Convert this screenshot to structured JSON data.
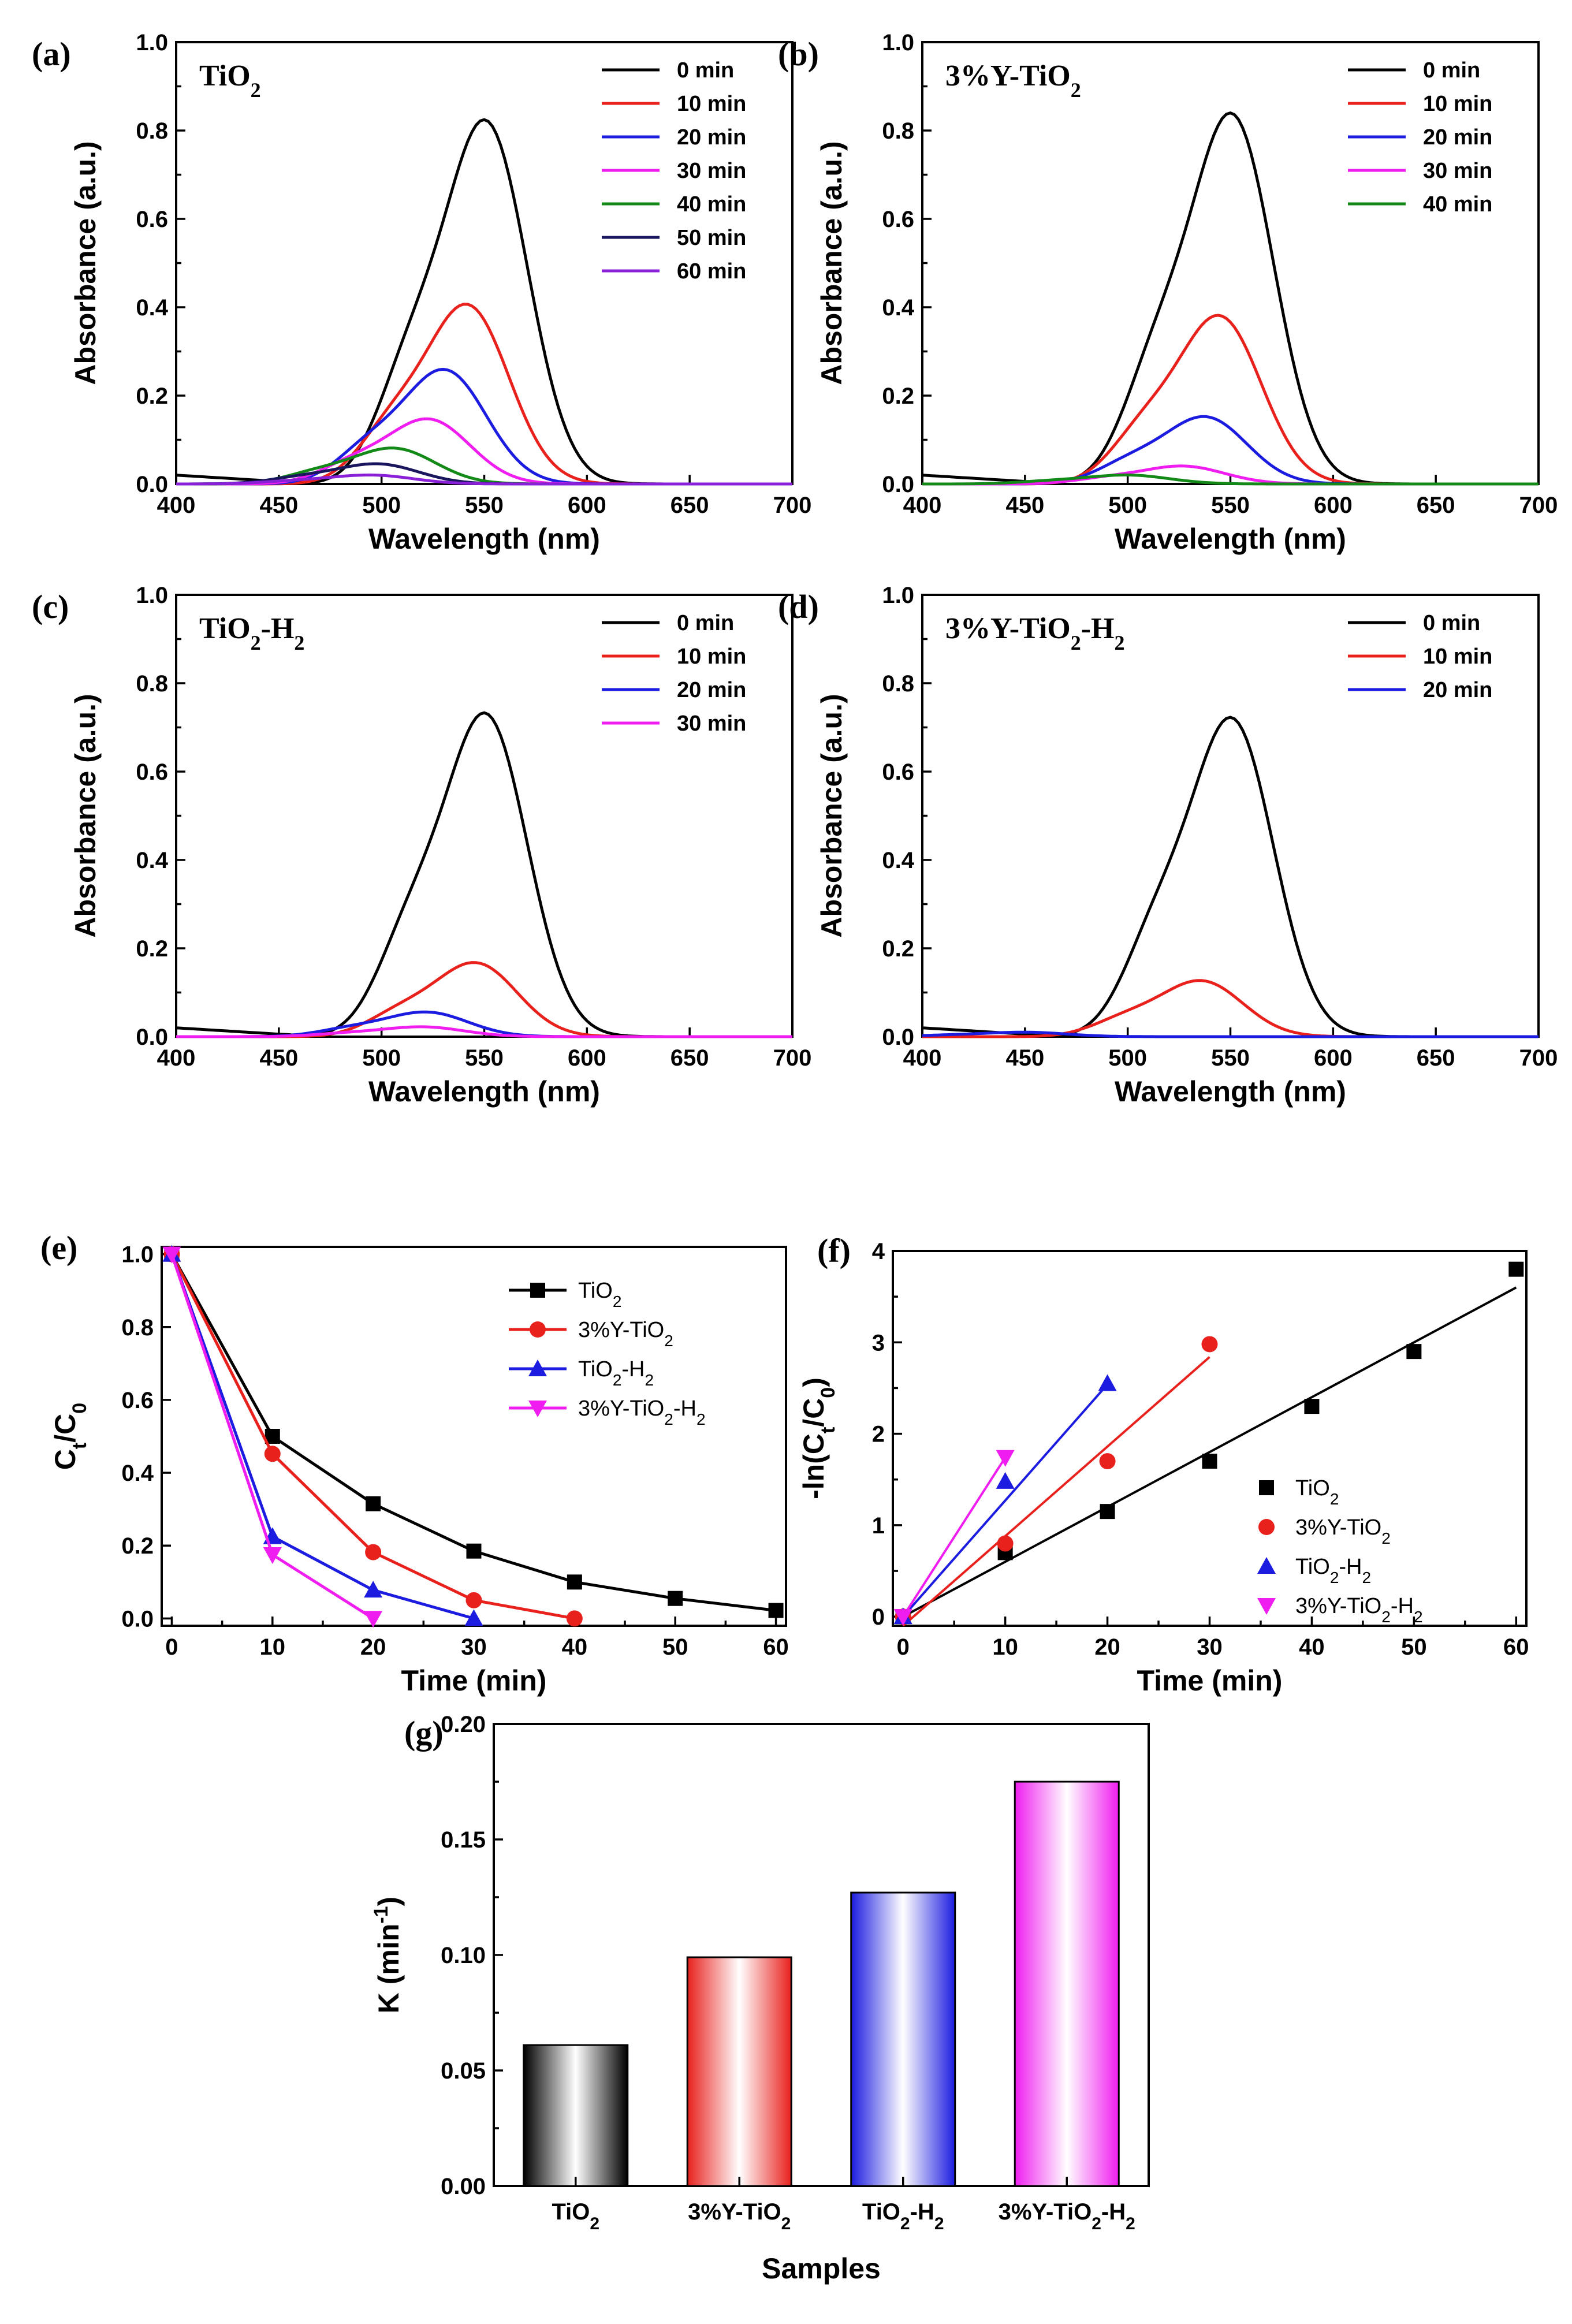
{
  "colors": {
    "black": "#000000",
    "red": "#e8211d",
    "blue": "#1c1ce0",
    "magenta": "#ef1def",
    "green": "#138a17",
    "navy": "#19165e",
    "violet": "#8a1fd8"
  },
  "chart_data": [
    {
      "id": "a",
      "type": "line",
      "panel_label": "(a)",
      "sample": "TiO2",
      "xlabel": "Wavelength (nm)",
      "ylabel": "Absorbance (a.u.)",
      "xlim": [
        400,
        700
      ],
      "ylim": [
        0,
        1.0
      ],
      "x_ticks": [
        "400",
        "450",
        "500",
        "550",
        "600",
        "650",
        "700"
      ],
      "y_ticks": [
        "0.0",
        "0.2",
        "0.4",
        "0.6",
        "0.8",
        "1.0"
      ],
      "legend_position": "top-right",
      "series": [
        {
          "name": "0 min",
          "color": "black",
          "peak": 0.81,
          "peak_x": 551,
          "base": 0.0
        },
        {
          "name": "10 min",
          "color": "red",
          "peak": 0.4,
          "peak_x": 542,
          "base": 0.0
        },
        {
          "name": "20 min",
          "color": "blue",
          "peak": 0.255,
          "peak_x": 531,
          "base": 0.0
        },
        {
          "name": "30 min",
          "color": "magenta",
          "peak": 0.145,
          "peak_x": 523,
          "base": 0.0
        },
        {
          "name": "40 min",
          "color": "green",
          "peak": 0.08,
          "peak_x": 506,
          "base": 0.0
        },
        {
          "name": "50 min",
          "color": "navy",
          "peak": 0.045,
          "peak_x": 498,
          "base": 0.0
        },
        {
          "name": "60 min",
          "color": "violet",
          "peak": 0.02,
          "peak_x": 495,
          "base": 0.0
        }
      ]
    },
    {
      "id": "b",
      "type": "line",
      "panel_label": "(b)",
      "sample": "3%Y-TiO2",
      "xlabel": "Wavelength (nm)",
      "ylabel": "Absorbance (a.u.)",
      "xlim": [
        400,
        700
      ],
      "ylim": [
        0,
        1.0
      ],
      "x_ticks": [
        "400",
        "450",
        "500",
        "550",
        "600",
        "650",
        "700"
      ],
      "y_ticks": [
        "0.0",
        "0.2",
        "0.4",
        "0.6",
        "0.8",
        "1.0"
      ],
      "legend_position": "top-right",
      "series": [
        {
          "name": "0 min",
          "color": "black",
          "peak": 0.825,
          "peak_x": 551,
          "base": 0.0
        },
        {
          "name": "10 min",
          "color": "red",
          "peak": 0.375,
          "peak_x": 545,
          "base": 0.0
        },
        {
          "name": "20 min",
          "color": "blue",
          "peak": 0.15,
          "peak_x": 538,
          "base": 0.0
        },
        {
          "name": "30 min",
          "color": "magenta",
          "peak": 0.04,
          "peak_x": 527,
          "base": 0.0
        },
        {
          "name": "40 min",
          "color": "green",
          "peak": 0.02,
          "peak_x": 500,
          "base": 0.0
        }
      ]
    },
    {
      "id": "c",
      "type": "line",
      "panel_label": "(c)",
      "sample": "TiO2-H2",
      "xlabel": "Wavelength (nm)",
      "ylabel": "Absorbance (a.u.)",
      "xlim": [
        400,
        700
      ],
      "ylim": [
        0,
        1.0
      ],
      "x_ticks": [
        "400",
        "450",
        "500",
        "550",
        "600",
        "650",
        "700"
      ],
      "y_ticks": [
        "0.0",
        "0.2",
        "0.4",
        "0.6",
        "0.8",
        "1.0"
      ],
      "legend_position": "top-right",
      "series": [
        {
          "name": "0 min",
          "color": "black",
          "peak": 0.72,
          "peak_x": 551,
          "base": 0.0
        },
        {
          "name": "10 min",
          "color": "red",
          "peak": 0.165,
          "peak_x": 546,
          "base": 0.0
        },
        {
          "name": "20 min",
          "color": "blue",
          "peak": 0.055,
          "peak_x": 522,
          "base": 0.0
        },
        {
          "name": "30 min",
          "color": "magenta",
          "peak": 0.022,
          "peak_x": 520,
          "base": 0.0
        }
      ]
    },
    {
      "id": "d",
      "type": "line",
      "panel_label": "(d)",
      "sample": "3%Y-TiO2-H2",
      "xlabel": "Wavelength (nm)",
      "ylabel": "Absorbance (a.u.)",
      "xlim": [
        400,
        700
      ],
      "ylim": [
        0,
        1.0
      ],
      "x_ticks": [
        "400",
        "450",
        "500",
        "550",
        "600",
        "650",
        "700"
      ],
      "y_ticks": [
        "0.0",
        "0.2",
        "0.4",
        "0.6",
        "0.8",
        "1.0"
      ],
      "legend_position": "top-right",
      "series": [
        {
          "name": "0 min",
          "color": "black",
          "peak": 0.71,
          "peak_x": 551,
          "base": 0.0
        },
        {
          "name": "10 min",
          "color": "red",
          "peak": 0.125,
          "peak_x": 536,
          "base": 0.0
        },
        {
          "name": "20 min",
          "color": "blue",
          "peak": 0.01,
          "peak_x": 450,
          "base": 0.0
        }
      ]
    },
    {
      "id": "e",
      "type": "line",
      "panel_label": "(e)",
      "xlabel": "Time (min)",
      "ylabel": "Ct/C0",
      "xlim": [
        -1,
        61
      ],
      "ylim": [
        -0.02,
        1.02
      ],
      "x_ticks": [
        "0",
        "10",
        "20",
        "30",
        "40",
        "50",
        "60"
      ],
      "y_ticks": [
        "0.0",
        "0.2",
        "0.4",
        "0.6",
        "0.8",
        "1.0"
      ],
      "legend_position": "top-right",
      "series": [
        {
          "name": "TiO2",
          "color": "black",
          "marker": "square",
          "x": [
            0,
            10,
            20,
            30,
            40,
            50,
            60
          ],
          "y": [
            1.0,
            0.5,
            0.315,
            0.185,
            0.1,
            0.055,
            0.022
          ]
        },
        {
          "name": "3%Y-TiO2",
          "color": "red",
          "marker": "circle",
          "x": [
            0,
            10,
            20,
            30,
            40
          ],
          "y": [
            1.0,
            0.452,
            0.182,
            0.05,
            0.0
          ]
        },
        {
          "name": "TiO2-H2",
          "color": "blue",
          "marker": "triangle-up",
          "x": [
            0,
            10,
            20,
            30
          ],
          "y": [
            1.0,
            0.225,
            0.078,
            0.0
          ]
        },
        {
          "name": "3%Y-TiO2-H2",
          "color": "magenta",
          "marker": "triangle-down",
          "x": [
            0,
            10,
            20
          ],
          "y": [
            1.0,
            0.175,
            0.0
          ]
        }
      ]
    },
    {
      "id": "f",
      "type": "scatter",
      "panel_label": "(f)",
      "xlabel": "Time (min)",
      "ylabel": "-ln(Ct/C0)",
      "xlim": [
        -1,
        61
      ],
      "ylim": [
        -0.1,
        4.0
      ],
      "x_ticks": [
        "0",
        "10",
        "20",
        "30",
        "40",
        "50",
        "60"
      ],
      "y_ticks": [
        "0",
        "1",
        "2",
        "3",
        "4"
      ],
      "legend_position": "bottom-right",
      "series": [
        {
          "name": "TiO2",
          "color": "black",
          "marker": "square",
          "x": [
            0,
            10,
            20,
            30,
            40,
            50,
            60
          ],
          "y": [
            0.0,
            0.7,
            1.15,
            1.7,
            2.3,
            2.9,
            3.8
          ],
          "fit": [
            0.0,
            0.06
          ]
        },
        {
          "name": "3%Y-TiO2",
          "color": "red",
          "marker": "circle",
          "x": [
            0,
            10,
            20,
            30
          ],
          "y": [
            0.0,
            0.8,
            1.7,
            2.98
          ],
          "fit": [
            -0.1,
            0.098
          ]
        },
        {
          "name": "TiO2-H2",
          "color": "blue",
          "marker": "triangle-up",
          "x": [
            0,
            10,
            20
          ],
          "y": [
            0.0,
            1.48,
            2.55
          ],
          "fit": [
            0.0,
            0.127
          ]
        },
        {
          "name": "3%Y-TiO2-H2",
          "color": "magenta",
          "marker": "triangle-down",
          "x": [
            0,
            10
          ],
          "y": [
            0.0,
            1.74
          ],
          "fit": [
            0.0,
            0.174
          ]
        }
      ]
    },
    {
      "id": "g",
      "type": "bar",
      "panel_label": "(g)",
      "xlabel": "Samples",
      "ylabel": "K (min-1)",
      "ylim": [
        0,
        0.2
      ],
      "y_ticks": [
        "0.00",
        "0.05",
        "0.10",
        "0.15",
        "0.20"
      ],
      "categories": [
        "TiO2",
        "3%Y-TiO2",
        "TiO2-H2",
        "3%Y-TiO2-H2"
      ],
      "colors": [
        "black",
        "red",
        "blue",
        "magenta"
      ],
      "values": [
        0.061,
        0.099,
        0.127,
        0.175
      ]
    }
  ]
}
